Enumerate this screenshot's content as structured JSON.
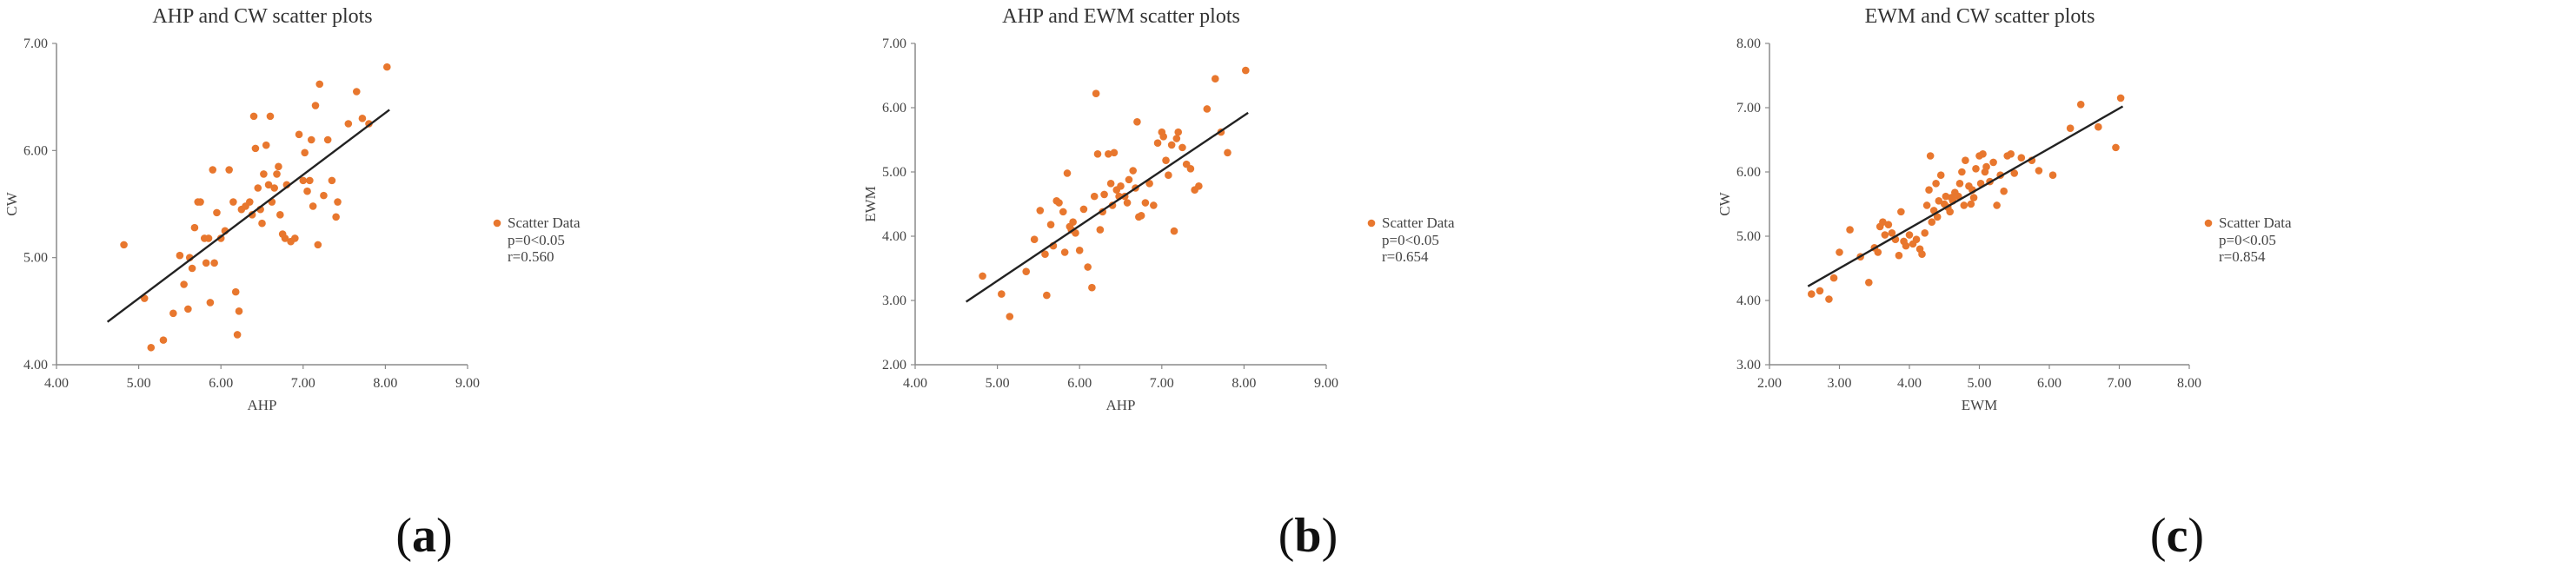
{
  "panels": [
    {
      "label": "a",
      "chart_data": {
        "type": "scatter",
        "title": "AHP and CW scatter plots",
        "xlabel": "AHP",
        "ylabel": "CW",
        "xlim": [
          4,
          9
        ],
        "ylim": [
          4,
          7
        ],
        "xticks": [
          "4.00",
          "5.00",
          "6.00",
          "7.00",
          "8.00",
          "9.00"
        ],
        "yticks": [
          "4.00",
          "5.00",
          "6.00",
          "7.00"
        ],
        "grid": false,
        "legend_position": "right",
        "legend": "Scatter Data",
        "annotations": [
          "p=0<0.05",
          "r=0.560"
        ],
        "marker_color": "#E8772E",
        "trendline": {
          "x": [
            4.62,
            8.05
          ],
          "y": [
            4.4,
            6.38
          ]
        },
        "series": [
          {
            "name": "Scatter Data",
            "x": [
              4.82,
              5.07,
              5.15,
              5.3,
              5.42,
              5.5,
              5.55,
              5.6,
              5.62,
              5.65,
              5.68,
              5.72,
              5.75,
              5.8,
              5.82,
              5.85,
              5.87,
              5.9,
              5.92,
              5.95,
              6.0,
              6.05,
              6.1,
              6.15,
              6.18,
              6.2,
              6.22,
              6.25,
              6.3,
              6.35,
              6.38,
              6.4,
              6.42,
              6.45,
              6.48,
              6.5,
              6.52,
              6.55,
              6.58,
              6.6,
              6.62,
              6.65,
              6.68,
              6.7,
              6.72,
              6.75,
              6.78,
              6.8,
              6.85,
              6.9,
              6.95,
              7.0,
              7.02,
              7.05,
              7.08,
              7.1,
              7.12,
              7.15,
              7.18,
              7.2,
              7.25,
              7.3,
              7.35,
              7.4,
              7.42,
              7.55,
              7.65,
              7.72,
              7.8,
              8.02
            ],
            "y": [
              5.12,
              4.62,
              4.16,
              4.23,
              4.48,
              5.02,
              4.75,
              4.52,
              5.0,
              4.9,
              5.28,
              5.52,
              5.52,
              5.18,
              4.95,
              5.18,
              4.58,
              5.82,
              4.95,
              5.42,
              5.18,
              5.25,
              5.82,
              5.52,
              4.68,
              4.28,
              4.5,
              5.45,
              5.48,
              5.52,
              5.4,
              6.32,
              6.02,
              5.65,
              5.45,
              5.32,
              5.78,
              6.05,
              5.68,
              6.32,
              5.52,
              5.65,
              5.78,
              5.85,
              5.4,
              5.22,
              5.18,
              5.68,
              5.15,
              5.18,
              6.15,
              5.72,
              5.98,
              5.62,
              5.72,
              6.1,
              5.48,
              6.42,
              5.12,
              6.62,
              5.58,
              6.1,
              5.72,
              5.38,
              5.52,
              6.25,
              6.55,
              6.3,
              6.25,
              6.78
            ]
          }
        ]
      }
    },
    {
      "label": "b",
      "chart_data": {
        "type": "scatter",
        "title": "AHP and EWM scatter plots",
        "xlabel": "AHP",
        "ylabel": "EWM",
        "xlim": [
          4,
          9
        ],
        "ylim": [
          2,
          7
        ],
        "xticks": [
          "4.00",
          "5.00",
          "6.00",
          "7.00",
          "8.00",
          "9.00"
        ],
        "yticks": [
          "2.00",
          "3.00",
          "4.00",
          "5.00",
          "6.00",
          "7.00"
        ],
        "grid": false,
        "legend_position": "right",
        "legend": "Scatter Data",
        "annotations": [
          "p=0<0.05",
          "r=0.654"
        ],
        "marker_color": "#E8772E",
        "trendline": {
          "x": [
            4.62,
            8.05
          ],
          "y": [
            2.98,
            5.92
          ]
        },
        "series": [
          {
            "name": "Scatter Data",
            "x": [
              4.82,
              5.05,
              5.15,
              5.35,
              5.45,
              5.52,
              5.58,
              5.6,
              5.65,
              5.68,
              5.72,
              5.75,
              5.8,
              5.82,
              5.85,
              5.88,
              5.9,
              5.92,
              5.95,
              6.0,
              6.05,
              6.1,
              6.15,
              6.18,
              6.2,
              6.22,
              6.25,
              6.28,
              6.3,
              6.35,
              6.38,
              6.4,
              6.42,
              6.45,
              6.48,
              6.5,
              6.55,
              6.58,
              6.6,
              6.65,
              6.68,
              6.7,
              6.72,
              6.75,
              6.8,
              6.85,
              6.9,
              6.95,
              7.0,
              7.02,
              7.05,
              7.08,
              7.12,
              7.15,
              7.18,
              7.2,
              7.25,
              7.3,
              7.35,
              7.4,
              7.45,
              7.55,
              7.65,
              7.72,
              7.8,
              8.02
            ],
            "y": [
              3.38,
              3.1,
              2.75,
              3.45,
              3.95,
              4.4,
              3.72,
              3.08,
              4.18,
              3.85,
              4.55,
              4.52,
              4.38,
              3.75,
              4.98,
              4.15,
              4.1,
              4.22,
              4.05,
              3.78,
              4.42,
              3.52,
              3.2,
              4.62,
              6.22,
              5.28,
              4.1,
              4.38,
              4.65,
              5.28,
              4.82,
              4.48,
              5.3,
              4.72,
              4.62,
              4.78,
              4.62,
              4.52,
              4.88,
              5.02,
              4.75,
              5.78,
              4.3,
              4.32,
              4.52,
              4.82,
              4.48,
              5.45,
              5.62,
              5.55,
              5.18,
              4.95,
              5.42,
              4.08,
              5.52,
              5.62,
              5.38,
              5.12,
              5.05,
              4.72,
              4.78,
              5.98,
              6.45,
              5.62,
              5.3,
              6.58
            ]
          }
        ]
      }
    },
    {
      "label": "c",
      "chart_data": {
        "type": "scatter",
        "title": "EWM and CW scatter plots",
        "xlabel": "EWM",
        "ylabel": "CW",
        "xlim": [
          2,
          8
        ],
        "ylim": [
          3,
          8
        ],
        "xticks": [
          "2.00",
          "3.00",
          "4.00",
          "5.00",
          "6.00",
          "7.00",
          "8.00"
        ],
        "yticks": [
          "3.00",
          "4.00",
          "5.00",
          "6.00",
          "7.00",
          "8.00"
        ],
        "grid": false,
        "legend_position": "right",
        "legend": "Scatter Data",
        "annotations": [
          "p=0<0.05",
          "r=0.854"
        ],
        "marker_color": "#E8772E",
        "trendline": {
          "x": [
            2.55,
            7.05
          ],
          "y": [
            4.22,
            7.02
          ]
        },
        "series": [
          {
            "name": "Scatter Data",
            "x": [
              2.6,
              2.72,
              2.85,
              2.92,
              3.0,
              3.15,
              3.3,
              3.42,
              3.5,
              3.55,
              3.58,
              3.62,
              3.65,
              3.7,
              3.75,
              3.8,
              3.85,
              3.88,
              3.92,
              3.95,
              4.0,
              4.05,
              4.1,
              4.15,
              4.18,
              4.22,
              4.25,
              4.28,
              4.3,
              4.32,
              4.35,
              4.38,
              4.4,
              4.42,
              4.45,
              4.5,
              4.52,
              4.55,
              4.58,
              4.6,
              4.62,
              4.65,
              4.7,
              4.72,
              4.75,
              4.78,
              4.8,
              4.85,
              4.88,
              4.9,
              4.92,
              4.95,
              5.0,
              5.02,
              5.05,
              5.08,
              5.1,
              5.15,
              5.2,
              5.25,
              5.3,
              5.35,
              5.4,
              5.45,
              5.5,
              5.6,
              5.75,
              5.85,
              6.05,
              6.3,
              6.45,
              6.7,
              6.95,
              7.02
            ],
            "y": [
              4.1,
              4.15,
              4.02,
              4.35,
              4.75,
              5.1,
              4.68,
              4.28,
              4.82,
              4.75,
              5.15,
              5.22,
              5.02,
              5.18,
              5.05,
              4.95,
              4.7,
              5.38,
              4.92,
              4.85,
              5.02,
              4.88,
              4.95,
              4.8,
              4.72,
              5.05,
              5.48,
              5.72,
              6.25,
              5.22,
              5.4,
              5.82,
              5.3,
              5.55,
              5.95,
              5.5,
              5.62,
              5.45,
              5.38,
              5.6,
              5.55,
              5.68,
              5.62,
              5.82,
              6.0,
              5.48,
              6.18,
              5.78,
              5.5,
              5.72,
              5.6,
              6.05,
              6.25,
              5.82,
              6.28,
              6.0,
              6.08,
              5.85,
              6.15,
              5.48,
              5.95,
              5.7,
              6.25,
              6.28,
              5.98,
              6.22,
              6.18,
              6.02,
              5.95,
              6.68,
              7.05,
              6.7,
              6.38,
              7.15
            ]
          }
        ]
      }
    }
  ]
}
